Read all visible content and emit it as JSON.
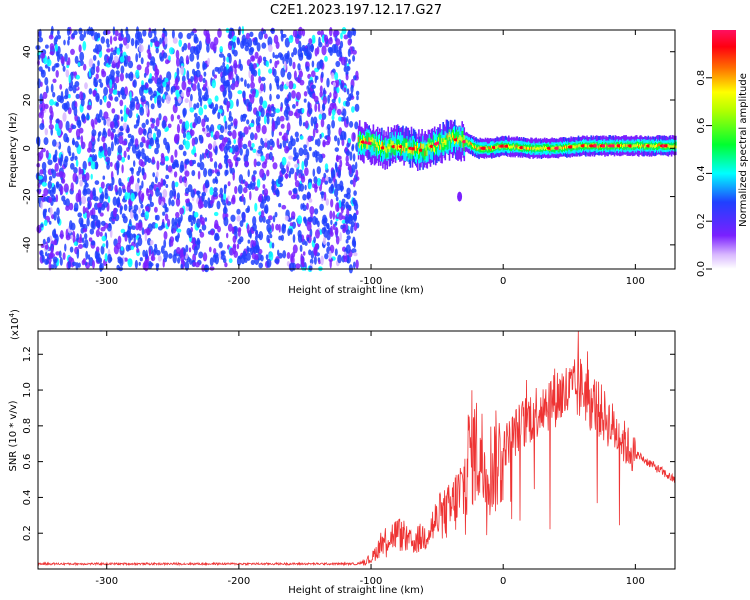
{
  "title": "C2E1.2023.197.12.17.G27",
  "chart_data": [
    {
      "type": "heatmap",
      "xlabel": "Height of straight line (km)",
      "ylabel": "Frequency (Hz)",
      "xlim": [
        -352,
        130
      ],
      "ylim": [
        -50,
        49
      ],
      "xticks": [
        -300,
        -200,
        -100,
        0,
        100
      ],
      "yticks": [
        -40,
        -20,
        0,
        20,
        40
      ],
      "colorbar": {
        "label": "Normalized spectral amplitude",
        "range": [
          0,
          1
        ],
        "ticks": [
          0.0,
          0.2,
          0.4,
          0.6,
          0.8
        ]
      },
      "regions": [
        {
          "description": "noise",
          "x_range": [
            -352,
            -110
          ],
          "y_range": [
            -50,
            49
          ],
          "amplitude": [
            0.05,
            0.3
          ]
        },
        {
          "description": "signal",
          "x_range": [
            -110,
            130
          ],
          "center_freq": [
            [
              -110,
              3
            ],
            [
              -100,
              2
            ],
            [
              -90,
              0
            ],
            [
              -80,
              1
            ],
            [
              -70,
              0
            ],
            [
              -60,
              -1
            ],
            [
              -50,
              2
            ],
            [
              -40,
              4
            ],
            [
              -30,
              3
            ],
            [
              -20,
              0
            ],
            [
              -10,
              0
            ],
            [
              0,
              1
            ],
            [
              20,
              0
            ],
            [
              40,
              0
            ],
            [
              60,
              1
            ],
            [
              80,
              1
            ],
            [
              100,
              1
            ],
            [
              130,
              1
            ]
          ]
        }
      ],
      "grid": false
    },
    {
      "type": "line",
      "xlabel": "Height of straight line (km)",
      "ylabel": "SNR (10 * v/v)",
      "exponent_label": "(x10",
      "exponent_power": "4",
      "exponent_close": ")",
      "xlim": [
        -352,
        130
      ],
      "ylim": [
        0,
        1.33
      ],
      "xticks": [
        -300,
        -200,
        -100,
        0,
        100
      ],
      "yticks": [
        0.2,
        0.4,
        0.6,
        0.8,
        1.0,
        1.2
      ],
      "color": "#ee3333",
      "series": [
        {
          "x": [
            -352,
            -300,
            -250,
            -200,
            -150,
            -110,
            -100,
            -90,
            -80,
            -70,
            -60,
            -50,
            -40,
            -30,
            -25,
            -20,
            -10,
            0,
            10,
            20,
            30,
            40,
            50,
            60,
            70,
            80,
            90,
            100,
            110,
            120,
            130
          ],
          "values": [
            0.03,
            0.03,
            0.03,
            0.03,
            0.03,
            0.03,
            0.06,
            0.18,
            0.22,
            0.16,
            0.2,
            0.3,
            0.36,
            0.5,
            0.75,
            0.72,
            0.62,
            0.7,
            0.8,
            0.88,
            0.95,
            1.0,
            1.02,
            1.05,
            0.95,
            0.85,
            0.75,
            0.65,
            0.6,
            0.55,
            0.5
          ]
        }
      ],
      "grid": false
    }
  ]
}
